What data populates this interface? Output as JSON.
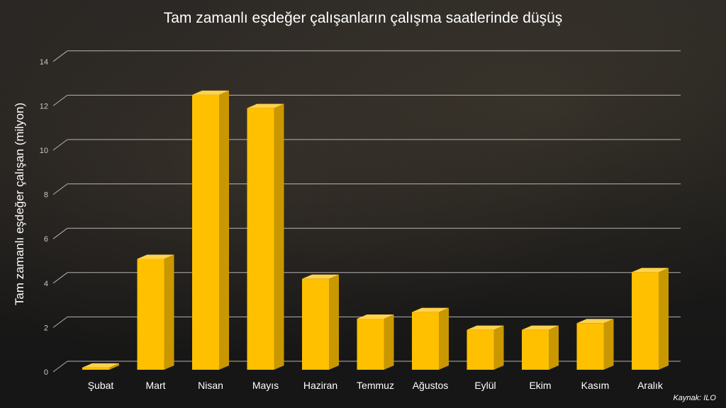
{
  "chart_data": {
    "type": "bar",
    "title": "Tam zamanlı eşdeğer çalışanların çalışma saatlerinde düşüş",
    "ylabel": "Tam zamanlı eşdeğer çalışan (milyon)",
    "xlabel": "",
    "ylim": [
      0,
      14
    ],
    "yticks": [
      "0",
      "2",
      "4",
      "6",
      "8",
      "10",
      "12",
      "14"
    ],
    "categories": [
      "Şubat",
      "Mart",
      "Nisan",
      "Mayıs",
      "Haziran",
      "Temmuz",
      "Ağustos",
      "Eylül",
      "Ekim",
      "Kasım",
      "Aralık"
    ],
    "values": [
      0.1,
      5.0,
      12.4,
      11.8,
      4.1,
      2.3,
      2.6,
      1.8,
      1.8,
      2.1,
      4.4
    ],
    "grid": true,
    "bar_color": "#FFC000",
    "bar_side_color": "#C99700",
    "bar_top_color": "#FFD24D"
  },
  "source": "Kaynak: ILO"
}
